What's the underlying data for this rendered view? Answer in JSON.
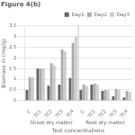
{
  "chart_data": {
    "type": "bar",
    "title": "Figure 4(b)",
    "xlabel": "Test concentrations",
    "ylabel": "Biomass in (mg/g)",
    "categories": [
      "C",
      "TC1",
      "TC2",
      "TC3",
      "TC4",
      "C",
      "TC1",
      "TC2",
      "TC3",
      "TC4"
    ],
    "series": [
      {
        "name": "Day1",
        "color": "#666666",
        "values": [
          0.5,
          1.5,
          0.7,
          0.75,
          1.05,
          0.5,
          0.75,
          0.45,
          0.2,
          0.15
        ]
      },
      {
        "name": "Day2",
        "color": "#aaaaaa",
        "values": [
          1.1,
          1.5,
          1.75,
          2.4,
          2.7,
          0.75,
          0.8,
          0.5,
          0.55,
          0.45
        ]
      },
      {
        "name": "Day3",
        "color": "#cccccc",
        "values": [
          1.1,
          1.5,
          1.65,
          2.3,
          3.0,
          0.7,
          0.75,
          0.5,
          0.5,
          0.4
        ]
      }
    ],
    "annotations": [
      "Shoot dry matter",
      "Root dry matter"
    ],
    "ylim": [
      0,
      3.5
    ],
    "yticks": [
      0,
      0.5,
      1,
      1.5,
      2,
      2.5,
      3,
      3.5
    ],
    "grid": true,
    "legend": "upper right"
  }
}
